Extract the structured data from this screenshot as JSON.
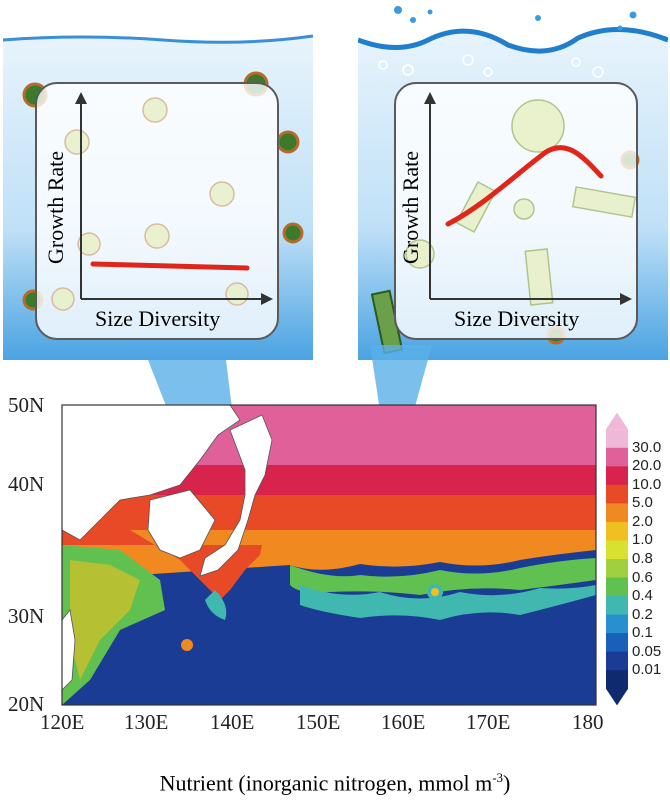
{
  "left_panel": {
    "ylabel": "Growth Rate",
    "xlabel": "Size Diversity"
  },
  "right_panel": {
    "ylabel": "Growth Rate",
    "xlabel": "Size Diversity"
  },
  "map": {
    "lat_labels": [
      "50N",
      "40N",
      "30N",
      "20N"
    ],
    "lon_labels": [
      "120E",
      "130E",
      "140E",
      "150E",
      "160E",
      "170E",
      "180"
    ],
    "colorbar": {
      "labels": [
        "30.0",
        "20.0",
        "10.0",
        "5.0",
        "2.0",
        "1.0",
        "0.8",
        "0.6",
        "0.4",
        "0.2",
        "0.1",
        "0.05",
        "0.01"
      ],
      "colors": [
        "#f0b8d8",
        "#e0609a",
        "#d8244c",
        "#e84a28",
        "#f08a20",
        "#f0c020",
        "#d8e030",
        "#a0d040",
        "#60c050",
        "#40b8b0",
        "#2890d0",
        "#1860b8",
        "#1a3c94",
        "#102a70"
      ]
    },
    "title_main": "Nutrient (inorganic nitrogen, mmol m",
    "title_sup": "-3",
    "title_end": ")"
  },
  "colors": {
    "accent_line": "#e0261a",
    "ocean_deep": "#1a3c94",
    "water_light": "#d6ecfa",
    "water_dark": "#3f9ee0"
  }
}
